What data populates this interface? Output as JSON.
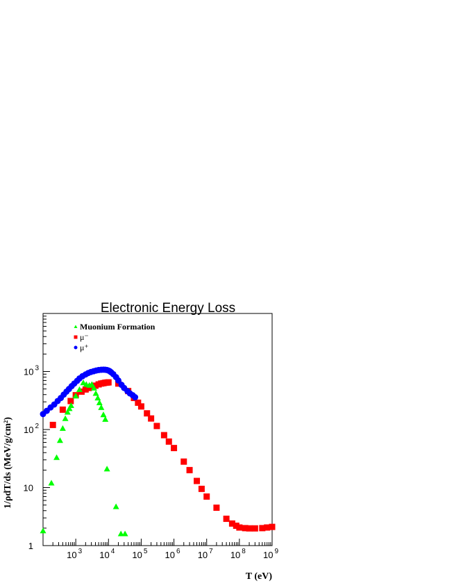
{
  "chart_data": {
    "type": "scatter",
    "title": "Electronic Energy Loss",
    "xlabel": "T (eV)",
    "ylabel": "1/ρdT/ds (MeV/g/cm²)",
    "x_scale": "log",
    "y_scale": "log",
    "xlim": [
      100,
      1000000000
    ],
    "ylim": [
      1,
      10000
    ],
    "grid": false,
    "legend_position": "top-left",
    "x_ticks": [
      {
        "value": 1000,
        "base": "10",
        "exp": "3"
      },
      {
        "value": 10000,
        "base": "10",
        "exp": "4"
      },
      {
        "value": 100000,
        "base": "10",
        "exp": "5"
      },
      {
        "value": 1000000,
        "base": "10",
        "exp": "6"
      },
      {
        "value": 10000000,
        "base": "10",
        "exp": "7"
      },
      {
        "value": 100000000,
        "base": "10",
        "exp": "8"
      },
      {
        "value": 1000000000,
        "base": "10",
        "exp": "9"
      }
    ],
    "y_ticks": [
      {
        "value": 1,
        "label": "1",
        "exp": ""
      },
      {
        "value": 10,
        "label": "10",
        "exp": ""
      },
      {
        "value": 100,
        "label": "10",
        "exp": "2"
      },
      {
        "value": 1000,
        "label": "10",
        "exp": "3"
      }
    ],
    "series": [
      {
        "name": "Muonium Formation",
        "marker": "triangle",
        "color": "#00ff00",
        "x": [
          100,
          180,
          260,
          330,
          400,
          480,
          560,
          640,
          720,
          1000,
          1300,
          1700,
          2100,
          2600,
          3100,
          3600,
          4100,
          4700,
          5300,
          6000,
          7000,
          8000,
          9000,
          17000,
          24000,
          32000
        ],
        "y": [
          1.8,
          12,
          33,
          65,
          105,
          155,
          200,
          230,
          260,
          380,
          490,
          640,
          600,
          580,
          600,
          520,
          420,
          350,
          290,
          240,
          180,
          150,
          21,
          4.7,
          1.6,
          1.6
        ]
      },
      {
        "name": "μ⁻",
        "marker": "square",
        "color": "#ff0000",
        "x": [
          200,
          400,
          700,
          1000,
          1500,
          2000,
          2500,
          3000,
          4000,
          5000,
          6000,
          7000,
          8000,
          9000,
          10000,
          20000,
          40000,
          60000,
          80000,
          100000,
          150000,
          200000,
          300000,
          500000,
          700000,
          1000000,
          2000000,
          3000000,
          5000000,
          7000000,
          10000000,
          20000000,
          40000000,
          60000000,
          80000000,
          100000000,
          150000000,
          200000000,
          300000000,
          500000000,
          700000000,
          1000000000
        ],
        "y": [
          120,
          220,
          310,
          390,
          450,
          490,
          520,
          540,
          570,
          600,
          620,
          630,
          640,
          645,
          650,
          620,
          460,
          350,
          290,
          250,
          190,
          155,
          115,
          80,
          62,
          48,
          28,
          20,
          13,
          9.5,
          7,
          4.5,
          2.9,
          2.4,
          2.2,
          2.05,
          2.0,
          1.98,
          1.98,
          2.0,
          2.05,
          2.1
        ]
      },
      {
        "name": "μ⁺",
        "marker": "circle",
        "color": "#0000ff",
        "x": [
          100,
          130,
          170,
          220,
          280,
          350,
          430,
          520,
          620,
          750,
          900,
          1100,
          1300,
          1600,
          2000,
          2400,
          2900,
          3500,
          4200,
          5000,
          6000,
          7000,
          8000,
          9000,
          10000,
          11000,
          12000,
          14000,
          17000,
          20000,
          25000,
          30000,
          38000,
          45000,
          55000,
          65000
        ],
        "y": [
          185,
          210,
          240,
          270,
          310,
          350,
          400,
          450,
          500,
          560,
          620,
          690,
          760,
          830,
          890,
          940,
          980,
          1010,
          1040,
          1060,
          1070,
          1075,
          1070,
          1060,
          1040,
          1010,
          970,
          900,
          800,
          700,
          590,
          520,
          460,
          420,
          390,
          360
        ]
      }
    ]
  }
}
